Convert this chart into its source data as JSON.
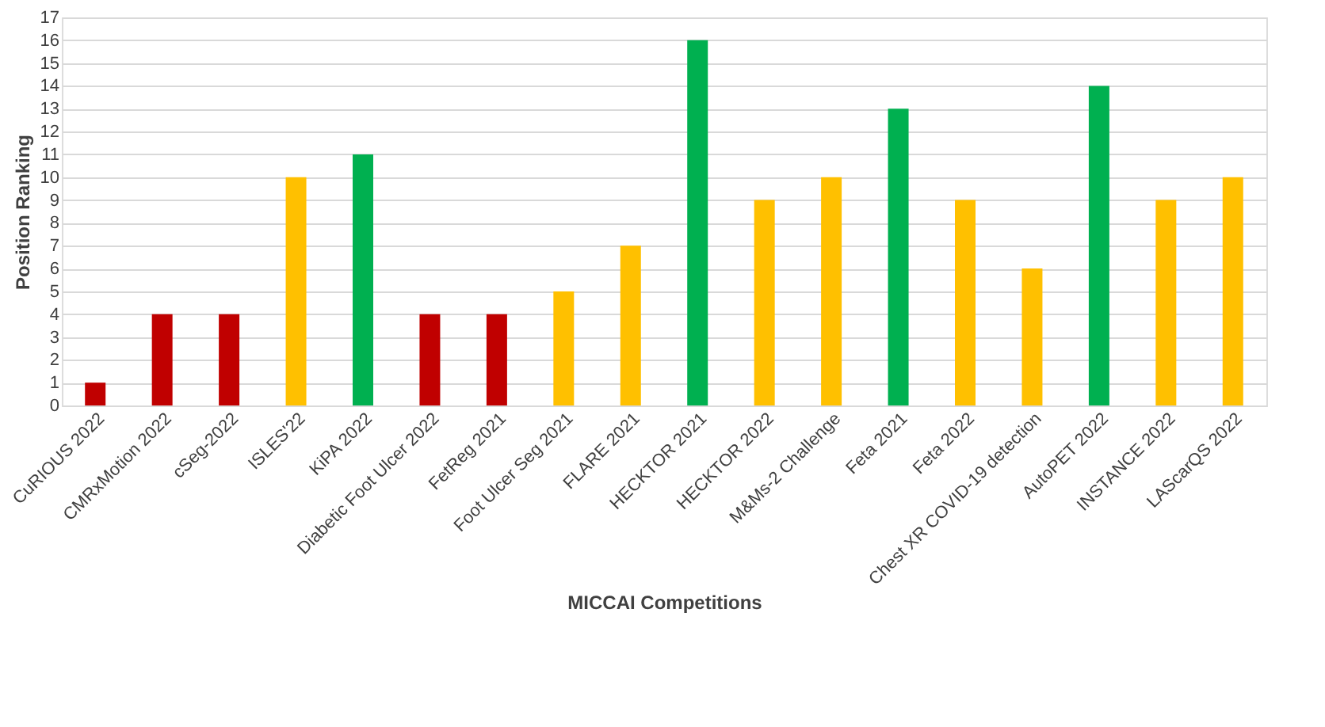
{
  "chart_data": {
    "type": "bar",
    "xlabel": "MICCAI Competitions",
    "ylabel": "Position Ranking",
    "categories": [
      "CuRIOUS 2022",
      "CMRxMotion 2022",
      "cSeg-2022",
      "ISLES'22",
      "KiPA 2022",
      "Diabetic Foot Ulcer 2022",
      "FetReg 2021",
      "Foot Ulcer Seg 2021",
      "FLARE 2021",
      "HECKTOR 2021",
      "HECKTOR 2022",
      "M&Ms-2 Challenge",
      "Feta 2021",
      "Feta 2022",
      "Chest XR COVID-19 detection",
      "AutoPET 2022",
      "INSTANCE 2022",
      "LAScarQS 2022"
    ],
    "values": [
      1,
      4,
      4,
      10,
      11,
      4,
      4,
      5,
      7,
      16,
      9,
      10,
      13,
      9,
      6,
      14,
      9,
      10
    ],
    "colors": [
      "#c00000",
      "#c00000",
      "#c00000",
      "#ffc000",
      "#00b050",
      "#c00000",
      "#c00000",
      "#ffc000",
      "#ffc000",
      "#00b050",
      "#ffc000",
      "#ffc000",
      "#00b050",
      "#ffc000",
      "#ffc000",
      "#00b050",
      "#ffc000",
      "#ffc000"
    ],
    "ylim": [
      0,
      17
    ],
    "yticks": [
      0,
      1,
      2,
      3,
      4,
      5,
      6,
      7,
      8,
      9,
      10,
      11,
      12,
      13,
      14,
      15,
      16,
      17
    ],
    "grid": "y"
  }
}
